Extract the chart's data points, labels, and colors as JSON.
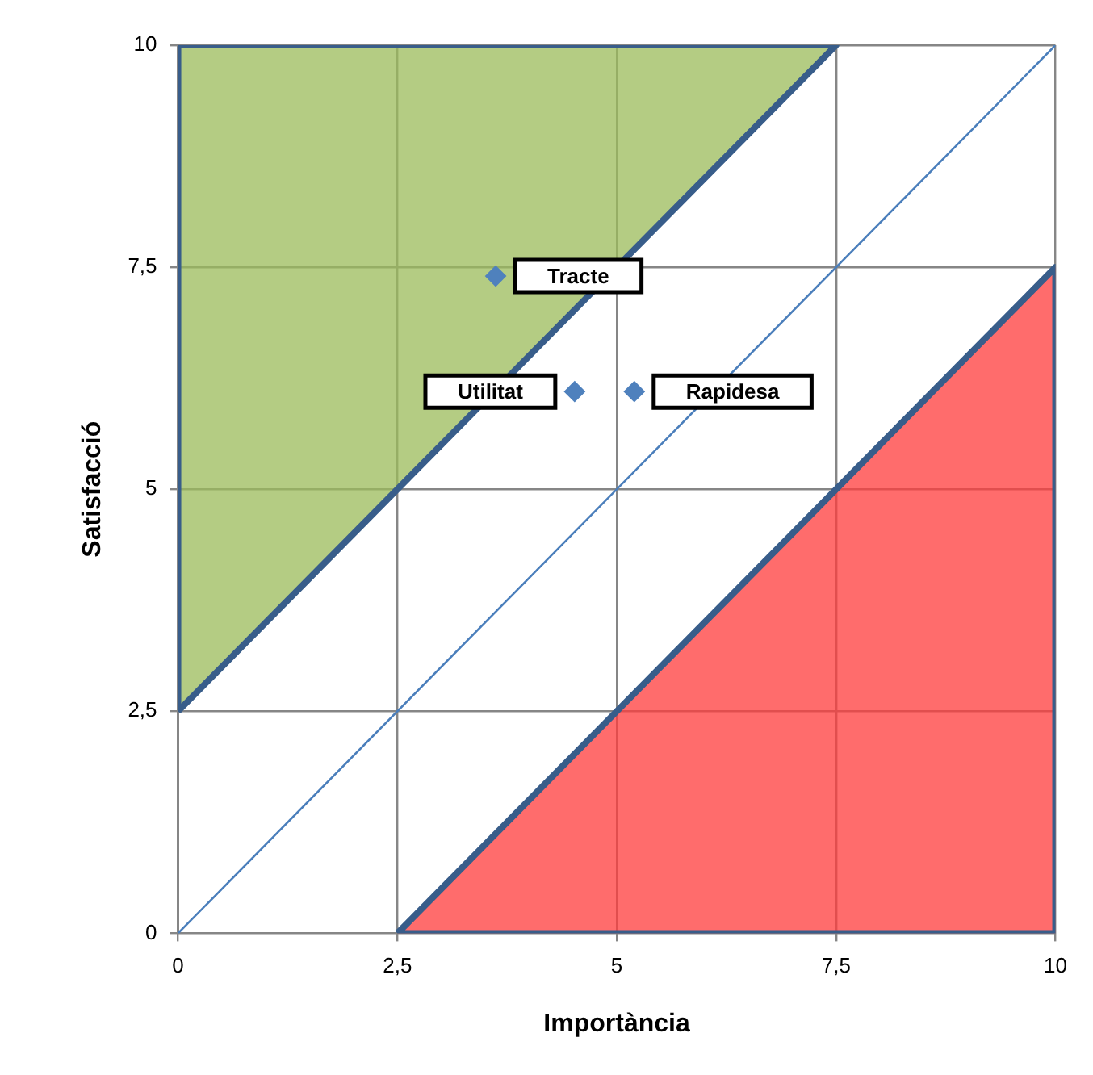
{
  "chart_data": {
    "type": "scatter",
    "xlabel": "Importància",
    "ylabel": "Satisfacció",
    "xlim": [
      0,
      10
    ],
    "ylim": [
      0,
      10
    ],
    "xticks": [
      0,
      {
        "value": 2.5,
        "label": "2,5"
      },
      5,
      {
        "value": 7.5,
        "label": "7,5"
      },
      10
    ],
    "yticks": [
      0,
      {
        "value": 2.5,
        "label": "2,5"
      },
      5,
      {
        "value": 7.5,
        "label": "7,5"
      },
      10
    ],
    "grid": true,
    "legend": false,
    "series": [
      {
        "type": "area",
        "color": "#9bbb59",
        "marker": "none",
        "x": [
          0,
          0,
          7.5,
          0
        ],
        "values": [
          2.5,
          10,
          10,
          2.5
        ]
      },
      {
        "type": "area",
        "color": "#ff3b3b",
        "marker": "none",
        "x": [
          2.5,
          10,
          10,
          2.5
        ],
        "values": [
          0,
          0,
          7.5,
          0
        ]
      },
      {
        "type": "line",
        "color": "#4a7ebb",
        "marker": "none",
        "x": [
          0,
          10
        ],
        "values": [
          0,
          10
        ]
      },
      {
        "color": "#4f81bd",
        "marker": "diamond",
        "x": [
          3.62,
          4.52,
          5.2
        ],
        "values": [
          7.4,
          6.1,
          6.1
        ]
      }
    ],
    "annotations": [
      {
        "text": "Tracte",
        "x": 3.62,
        "y": 7.4
      },
      {
        "text": "Utilitat",
        "x": 4.52,
        "y": 6.1
      },
      {
        "text": "Rapidesa",
        "x": 5.2,
        "y": 6.1
      }
    ]
  }
}
